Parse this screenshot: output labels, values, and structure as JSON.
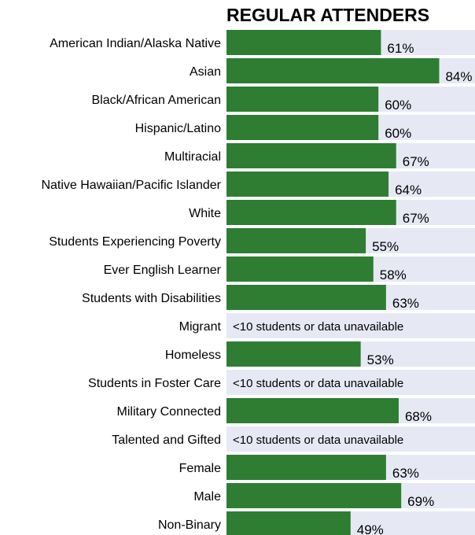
{
  "chart_data": {
    "type": "bar",
    "orientation": "horizontal",
    "title": "REGULAR ATTENDERS",
    "xlim": [
      0,
      100
    ],
    "grid": false,
    "legend": "none",
    "colors": {
      "bar": "#2e7d32",
      "track": "#e6e9f4",
      "text": "#000000"
    },
    "unavailable_text": "<10 students or data unavailable",
    "categories": [
      "American Indian/Alaska Native",
      "Asian",
      "Black/African American",
      "Hispanic/Latino",
      "Multiracial",
      "Native Hawaiian/Pacific Islander",
      "White",
      "Students Experiencing Poverty",
      "Ever English Learner",
      "Students with Disabilities",
      "Migrant",
      "Homeless",
      "Students in Foster Care",
      "Military Connected",
      "Talented and Gifted",
      "Female",
      "Male",
      "Non-Binary"
    ],
    "values": [
      61,
      84,
      60,
      60,
      67,
      64,
      67,
      55,
      58,
      63,
      null,
      53,
      null,
      68,
      null,
      63,
      69,
      49
    ],
    "value_labels": [
      "61%",
      "84%",
      "60%",
      "60%",
      "67%",
      "64%",
      "67%",
      "55%",
      "58%",
      "63%",
      "",
      "53%",
      "",
      "68%",
      "",
      "63%",
      "69%",
      "49%"
    ]
  }
}
